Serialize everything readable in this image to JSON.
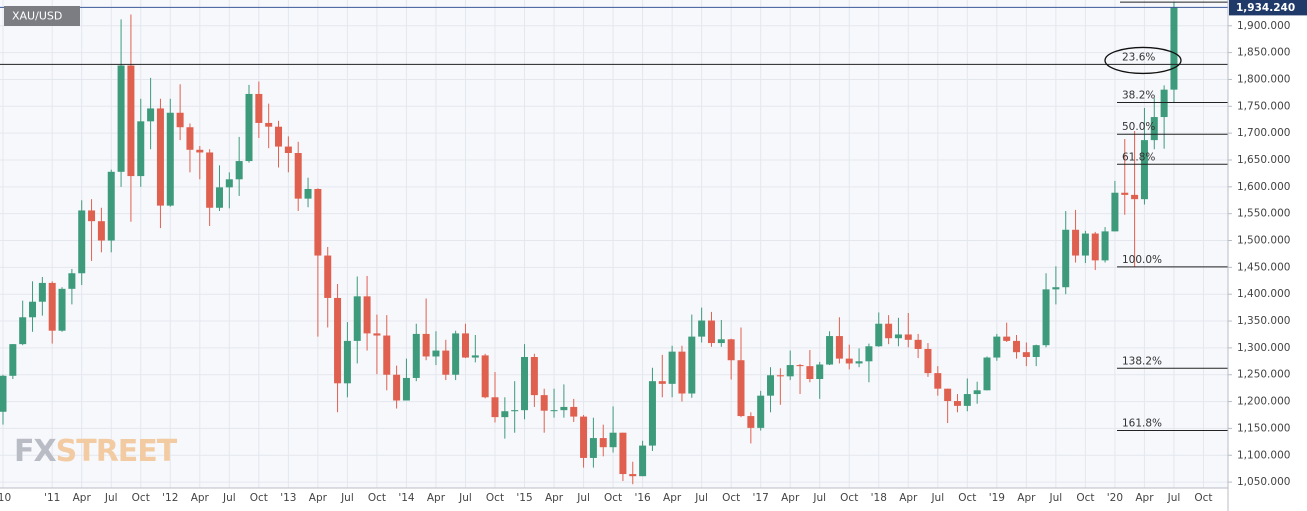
{
  "chart_data": {
    "type": "candlestick",
    "symbol": "XAU/USD",
    "watermark": {
      "fx": "FX",
      "street": "STREET"
    },
    "categories": [
      "'10",
      null,
      null,
      null,
      null,
      "'11",
      null,
      null,
      "Apr",
      null,
      null,
      "Jul",
      null,
      null,
      "Oct",
      null,
      null,
      "'12",
      null,
      null,
      "Apr",
      null,
      null,
      "Jul",
      null,
      null,
      "Oct",
      null,
      null,
      "'13",
      null,
      null,
      "Apr",
      null,
      null,
      "Jul",
      null,
      null,
      "Oct",
      null,
      null,
      "'14",
      null,
      null,
      "Apr",
      null,
      null,
      "Jul",
      null,
      null,
      "Oct",
      null,
      null,
      "'15",
      null,
      null,
      "Apr",
      null,
      null,
      "Jul",
      null,
      null,
      "Oct",
      null,
      null,
      "'16",
      null,
      null,
      "Apr",
      null,
      null,
      "Jul",
      null,
      null,
      "Oct",
      null,
      null,
      "'17",
      null,
      null,
      "Apr",
      null,
      null,
      "Jul",
      null,
      null,
      "Oct",
      null,
      null,
      "'18",
      null,
      null,
      "Apr",
      null,
      null,
      "Jul",
      null,
      null,
      "Oct",
      null,
      null,
      "'19",
      null,
      null,
      "Apr",
      null,
      null,
      "Jul",
      null,
      null,
      "Oct",
      null,
      null,
      "'20",
      null,
      null,
      "Apr",
      null,
      null,
      "Jul",
      null,
      null,
      "Oct"
    ],
    "open": [
      1181,
      1248,
      1307,
      1357,
      1386,
      1421,
      1332,
      1410,
      1439,
      1556,
      1536,
      1500,
      1628,
      1826,
      1620,
      1722,
      1746,
      1565,
      1738,
      1711,
      1669,
      1664,
      1561,
      1599,
      1614,
      1648,
      1773,
      1719,
      1712,
      1675,
      1663,
      1578,
      1596,
      1472,
      1393,
      1234,
      1313,
      1396,
      1327,
      1323,
      1250,
      1202,
      1244,
      1326,
      1284,
      1295,
      1250,
      1327,
      1282,
      1286,
      1208,
      1171,
      1182,
      1184,
      1283,
      1212,
      1183,
      1184,
      1190,
      1172,
      1095,
      1132,
      1115,
      1142,
      1065,
      1061,
      1118,
      1238,
      1233,
      1293,
      1215,
      1321,
      1351,
      1309,
      1316,
      1277,
      1173,
      1151,
      1211,
      1249,
      1247,
      1268,
      1266,
      1242,
      1269,
      1322,
      1280,
      1271,
      1275,
      1303,
      1345,
      1318,
      1325,
      1315,
      1298,
      1253,
      1224,
      1201,
      1192,
      1214,
      1221,
      1282,
      1321,
      1313,
      1292,
      1283,
      1305,
      1409,
      1413,
      1520,
      1472,
      1513,
      1463,
      1517,
      1589,
      1585,
      1577,
      1687,
      1730,
      1781,
      null,
      null,
      null
    ],
    "high": [
      1250,
      1307,
      1388,
      1424,
      1432,
      1424,
      1413,
      1447,
      1575,
      1577,
      1561,
      1632,
      1912,
      1921,
      1764,
      1803,
      1764,
      1764,
      1791,
      1718,
      1676,
      1670,
      1640,
      1627,
      1693,
      1790,
      1796,
      1755,
      1723,
      1694,
      1684,
      1617,
      1597,
      1488,
      1419,
      1348,
      1433,
      1434,
      1362,
      1361,
      1267,
      1280,
      1345,
      1392,
      1331,
      1315,
      1332,
      1345,
      1324,
      1289,
      1255,
      1208,
      1238,
      1307,
      1289,
      1224,
      1224,
      1232,
      1205,
      1175,
      1170,
      1157,
      1191,
      1142,
      1088,
      1127,
      1263,
      1287,
      1304,
      1304,
      1362,
      1375,
      1367,
      1352,
      1317,
      1338,
      1180,
      1220,
      1264,
      1262,
      1295,
      1270,
      1296,
      1274,
      1331,
      1357,
      1306,
      1299,
      1308,
      1366,
      1361,
      1356,
      1365,
      1326,
      1309,
      1266,
      1224,
      1214,
      1243,
      1237,
      1284,
      1326,
      1347,
      1324,
      1310,
      1306,
      1439,
      1452,
      1555,
      1557,
      1518,
      1516,
      1525,
      1611,
      1689,
      1704,
      1747,
      1765,
      1789,
      1944,
      null,
      null,
      null
    ],
    "low": [
      1157,
      1242,
      1305,
      1330,
      1360,
      1308,
      1330,
      1381,
      1417,
      1462,
      1478,
      1478,
      1600,
      1535,
      1600,
      1670,
      1523,
      1563,
      1687,
      1627,
      1614,
      1527,
      1555,
      1560,
      1583,
      1645,
      1691,
      1672,
      1636,
      1627,
      1555,
      1562,
      1321,
      1338,
      1180,
      1208,
      1271,
      1295,
      1251,
      1221,
      1187,
      1202,
      1238,
      1277,
      1268,
      1240,
      1240,
      1281,
      1273,
      1206,
      1161,
      1131,
      1142,
      1167,
      1190,
      1142,
      1170,
      1170,
      1162,
      1077,
      1077,
      1098,
      1105,
      1052,
      1046,
      1061,
      1108,
      1208,
      1208,
      1200,
      1207,
      1310,
      1302,
      1302,
      1241,
      1171,
      1122,
      1146,
      1180,
      1194,
      1240,
      1214,
      1236,
      1205,
      1268,
      1271,
      1260,
      1264,
      1236,
      1302,
      1307,
      1303,
      1301,
      1281,
      1246,
      1211,
      1160,
      1180,
      1182,
      1196,
      1221,
      1276,
      1311,
      1280,
      1266,
      1266,
      1301,
      1381,
      1400,
      1459,
      1458,
      1445,
      1459,
      1517,
      1548,
      1451,
      1567,
      1670,
      1671,
      1757,
      null,
      null,
      null
    ],
    "close": [
      1248,
      1307,
      1357,
      1386,
      1421,
      1332,
      1410,
      1439,
      1556,
      1536,
      1500,
      1628,
      1826,
      1620,
      1722,
      1746,
      1565,
      1738,
      1711,
      1669,
      1664,
      1561,
      1599,
      1614,
      1648,
      1773,
      1719,
      1712,
      1675,
      1663,
      1578,
      1596,
      1472,
      1393,
      1234,
      1313,
      1396,
      1327,
      1323,
      1250,
      1202,
      1244,
      1326,
      1284,
      1295,
      1250,
      1327,
      1282,
      1286,
      1208,
      1171,
      1182,
      1184,
      1283,
      1212,
      1183,
      1184,
      1190,
      1172,
      1095,
      1132,
      1115,
      1142,
      1065,
      1061,
      1118,
      1238,
      1233,
      1293,
      1215,
      1321,
      1351,
      1309,
      1316,
      1277,
      1173,
      1151,
      1211,
      1249,
      1247,
      1268,
      1266,
      1242,
      1269,
      1322,
      1280,
      1271,
      1275,
      1303,
      1345,
      1318,
      1325,
      1315,
      1298,
      1253,
      1224,
      1201,
      1192,
      1214,
      1221,
      1282,
      1321,
      1313,
      1292,
      1283,
      1305,
      1409,
      1413,
      1520,
      1472,
      1513,
      1463,
      1517,
      1589,
      1585,
      1577,
      1687,
      1730,
      1781,
      1934.24,
      null,
      null,
      null
    ],
    "up_color": "#3d9a7b",
    "down_color": "#e0604f",
    "ylim": [
      1039,
      1948
    ],
    "yticks": [
      {
        "value": 1050,
        "label": "1,050.000"
      },
      {
        "value": 1100,
        "label": "1,100.000"
      },
      {
        "value": 1150,
        "label": "1,150.000"
      },
      {
        "value": 1200,
        "label": "1,200.000"
      },
      {
        "value": 1250,
        "label": "1,250.000"
      },
      {
        "value": 1300,
        "label": "1,300.000"
      },
      {
        "value": 1350,
        "label": "1,350.000"
      },
      {
        "value": 1400,
        "label": "1,400.000"
      },
      {
        "value": 1450,
        "label": "1,450.000"
      },
      {
        "value": 1500,
        "label": "1,500.000"
      },
      {
        "value": 1550,
        "label": "1,550.000"
      },
      {
        "value": 1600,
        "label": "1,600.000"
      },
      {
        "value": 1650,
        "label": "1,650.000"
      },
      {
        "value": 1700,
        "label": "1,700.000"
      },
      {
        "value": 1750,
        "label": "1,750.000"
      },
      {
        "value": 1800,
        "label": "1,800.000"
      },
      {
        "value": 1850,
        "label": "1,850.000"
      },
      {
        "value": 1900,
        "label": "1,900.000"
      }
    ],
    "last_price": {
      "value": 1934.24,
      "label": "1,934.240"
    },
    "fib_levels": [
      {
        "value": 1828,
        "label": "23.6%"
      },
      {
        "value": 1757,
        "label": "38.2%"
      },
      {
        "value": 1698,
        "label": "50.0%"
      },
      {
        "value": 1642,
        "label": "61.8%"
      },
      {
        "value": 1451,
        "label": "100.0%"
      },
      {
        "value": 1262,
        "label": "138.2%"
      },
      {
        "value": 1146,
        "label": "161.8%"
      }
    ],
    "grid": true
  }
}
